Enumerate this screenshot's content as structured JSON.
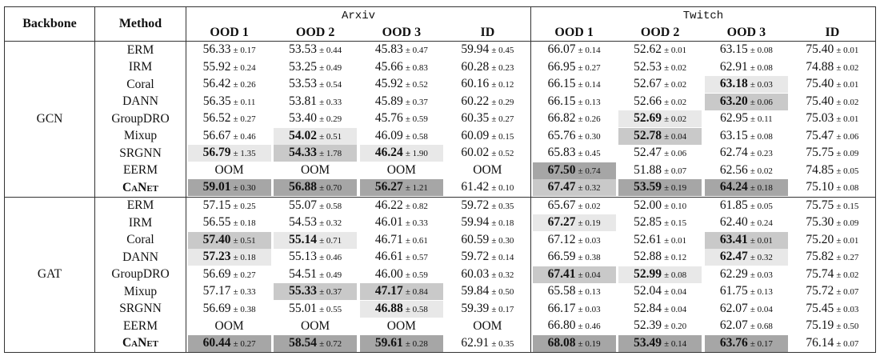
{
  "header": {
    "backbone": "Backbone",
    "method": "Method",
    "datasets": [
      {
        "name": "Arxiv",
        "columns": [
          "OOD 1",
          "OOD 2",
          "OOD 3",
          "ID"
        ]
      },
      {
        "name": "Twitch",
        "columns": [
          "OOD 1",
          "OOD 2",
          "OOD 3",
          "ID"
        ]
      }
    ]
  },
  "groups": [
    {
      "backbone": "GCN",
      "rows": [
        {
          "method": "ERM",
          "cells": [
            {
              "mean": "56.33",
              "std": "± 0.17"
            },
            {
              "mean": "53.53",
              "std": "± 0.44"
            },
            {
              "mean": "45.83",
              "std": "± 0.47"
            },
            {
              "mean": "59.94",
              "std": "± 0.45"
            },
            {
              "mean": "66.07",
              "std": "± 0.14"
            },
            {
              "mean": "52.62",
              "std": "± 0.01"
            },
            {
              "mean": "63.15",
              "std": "± 0.08"
            },
            {
              "mean": "75.40",
              "std": "± 0.01"
            }
          ]
        },
        {
          "method": "IRM",
          "cells": [
            {
              "mean": "55.92",
              "std": "± 0.24"
            },
            {
              "mean": "53.25",
              "std": "± 0.49"
            },
            {
              "mean": "45.66",
              "std": "± 0.83"
            },
            {
              "mean": "60.28",
              "std": "± 0.23"
            },
            {
              "mean": "66.95",
              "std": "± 0.27"
            },
            {
              "mean": "52.53",
              "std": "± 0.02"
            },
            {
              "mean": "62.91",
              "std": "± 0.08"
            },
            {
              "mean": "74.88",
              "std": "± 0.02"
            }
          ]
        },
        {
          "method": "Coral",
          "cells": [
            {
              "mean": "56.42",
              "std": "± 0.26"
            },
            {
              "mean": "53.53",
              "std": "± 0.54"
            },
            {
              "mean": "45.92",
              "std": "± 0.52"
            },
            {
              "mean": "60.16",
              "std": "± 0.12"
            },
            {
              "mean": "66.15",
              "std": "± 0.14"
            },
            {
              "mean": "52.67",
              "std": "± 0.02"
            },
            {
              "mean": "63.18",
              "std": "± 0.03",
              "highlight": "light"
            },
            {
              "mean": "75.40",
              "std": "± 0.01"
            }
          ]
        },
        {
          "method": "DANN",
          "cells": [
            {
              "mean": "56.35",
              "std": "± 0.11"
            },
            {
              "mean": "53.81",
              "std": "± 0.33"
            },
            {
              "mean": "45.89",
              "std": "± 0.37"
            },
            {
              "mean": "60.22",
              "std": "± 0.29"
            },
            {
              "mean": "66.15",
              "std": "± 0.13"
            },
            {
              "mean": "52.66",
              "std": "± 0.02"
            },
            {
              "mean": "63.20",
              "std": "± 0.06",
              "highlight": "medium"
            },
            {
              "mean": "75.40",
              "std": "± 0.02"
            }
          ]
        },
        {
          "method": "GroupDRO",
          "cells": [
            {
              "mean": "56.52",
              "std": "± 0.27"
            },
            {
              "mean": "53.40",
              "std": "± 0.29"
            },
            {
              "mean": "45.76",
              "std": "± 0.59"
            },
            {
              "mean": "60.35",
              "std": "± 0.27"
            },
            {
              "mean": "66.82",
              "std": "± 0.26"
            },
            {
              "mean": "52.69",
              "std": "± 0.02",
              "highlight": "light"
            },
            {
              "mean": "62.95",
              "std": "± 0.11"
            },
            {
              "mean": "75.03",
              "std": "± 0.01"
            }
          ]
        },
        {
          "method": "Mixup",
          "cells": [
            {
              "mean": "56.67",
              "std": "± 0.46"
            },
            {
              "mean": "54.02",
              "std": "± 0.51",
              "highlight": "light"
            },
            {
              "mean": "46.09",
              "std": "± 0.58"
            },
            {
              "mean": "60.09",
              "std": "± 0.15"
            },
            {
              "mean": "65.76",
              "std": "± 0.30"
            },
            {
              "mean": "52.78",
              "std": "± 0.04",
              "highlight": "medium"
            },
            {
              "mean": "63.15",
              "std": "± 0.08"
            },
            {
              "mean": "75.47",
              "std": "± 0.06"
            }
          ]
        },
        {
          "method": "SRGNN",
          "cells": [
            {
              "mean": "56.79",
              "std": "± 1.35",
              "highlight": "light"
            },
            {
              "mean": "54.33",
              "std": "± 1.78",
              "highlight": "medium"
            },
            {
              "mean": "46.24",
              "std": "± 1.90",
              "highlight": "light"
            },
            {
              "mean": "60.02",
              "std": "± 0.52"
            },
            {
              "mean": "65.83",
              "std": "± 0.45"
            },
            {
              "mean": "52.47",
              "std": "± 0.06"
            },
            {
              "mean": "62.74",
              "std": "± 0.23"
            },
            {
              "mean": "75.75",
              "std": "± 0.09"
            }
          ]
        },
        {
          "method": "EERM",
          "cells": [
            {
              "mean": "OOM"
            },
            {
              "mean": "OOM"
            },
            {
              "mean": "OOM"
            },
            {
              "mean": "OOM"
            },
            {
              "mean": "67.50",
              "std": "± 0.74",
              "highlight": "dark"
            },
            {
              "mean": "51.88",
              "std": "± 0.07"
            },
            {
              "mean": "62.56",
              "std": "± 0.02"
            },
            {
              "mean": "74.85",
              "std": "± 0.05"
            }
          ]
        },
        {
          "method": "CaNet",
          "bold": true,
          "cells": [
            {
              "mean": "59.01",
              "std": "± 0.30",
              "highlight": "dark"
            },
            {
              "mean": "56.88",
              "std": "± 0.70",
              "highlight": "dark"
            },
            {
              "mean": "56.27",
              "std": "± 1.21",
              "highlight": "dark"
            },
            {
              "mean": "61.42",
              "std": "± 0.10"
            },
            {
              "mean": "67.47",
              "std": "± 0.32",
              "highlight": "medium"
            },
            {
              "mean": "53.59",
              "std": "± 0.19",
              "highlight": "dark"
            },
            {
              "mean": "64.24",
              "std": "± 0.18",
              "highlight": "dark"
            },
            {
              "mean": "75.10",
              "std": "± 0.08"
            }
          ]
        }
      ]
    },
    {
      "backbone": "GAT",
      "rows": [
        {
          "method": "ERM",
          "cells": [
            {
              "mean": "57.15",
              "std": "± 0.25"
            },
            {
              "mean": "55.07",
              "std": "± 0.58"
            },
            {
              "mean": "46.22",
              "std": "± 0.82"
            },
            {
              "mean": "59.72",
              "std": "± 0.35"
            },
            {
              "mean": "65.67",
              "std": "± 0.02"
            },
            {
              "mean": "52.00",
              "std": "± 0.10"
            },
            {
              "mean": "61.85",
              "std": "± 0.05"
            },
            {
              "mean": "75.75",
              "std": "± 0.15"
            }
          ]
        },
        {
          "method": "IRM",
          "cells": [
            {
              "mean": "56.55",
              "std": "± 0.18"
            },
            {
              "mean": "54.53",
              "std": "± 0.32"
            },
            {
              "mean": "46.01",
              "std": "± 0.33"
            },
            {
              "mean": "59.94",
              "std": "± 0.18"
            },
            {
              "mean": "67.27",
              "std": "± 0.19",
              "highlight": "light"
            },
            {
              "mean": "52.85",
              "std": "± 0.15"
            },
            {
              "mean": "62.40",
              "std": "± 0.24"
            },
            {
              "mean": "75.30",
              "std": "± 0.09"
            }
          ]
        },
        {
          "method": "Coral",
          "cells": [
            {
              "mean": "57.40",
              "std": "± 0.51",
              "highlight": "medium"
            },
            {
              "mean": "55.14",
              "std": "± 0.71",
              "highlight": "light"
            },
            {
              "mean": "46.71",
              "std": "± 0.61"
            },
            {
              "mean": "60.59",
              "std": "± 0.30"
            },
            {
              "mean": "67.12",
              "std": "± 0.03"
            },
            {
              "mean": "52.61",
              "std": "± 0.01"
            },
            {
              "mean": "63.41",
              "std": "± 0.01",
              "highlight": "medium"
            },
            {
              "mean": "75.20",
              "std": "± 0.01"
            }
          ]
        },
        {
          "method": "DANN",
          "cells": [
            {
              "mean": "57.23",
              "std": "± 0.18",
              "highlight": "light"
            },
            {
              "mean": "55.13",
              "std": "± 0.46"
            },
            {
              "mean": "46.61",
              "std": "± 0.57"
            },
            {
              "mean": "59.72",
              "std": "± 0.14"
            },
            {
              "mean": "66.59",
              "std": "± 0.38"
            },
            {
              "mean": "52.88",
              "std": "± 0.12"
            },
            {
              "mean": "62.47",
              "std": "± 0.32",
              "highlight": "light"
            },
            {
              "mean": "75.82",
              "std": "± 0.27"
            }
          ]
        },
        {
          "method": "GroupDRO",
          "cells": [
            {
              "mean": "56.69",
              "std": "± 0.27"
            },
            {
              "mean": "54.51",
              "std": "± 0.49"
            },
            {
              "mean": "46.00",
              "std": "± 0.59"
            },
            {
              "mean": "60.03",
              "std": "± 0.32"
            },
            {
              "mean": "67.41",
              "std": "± 0.04",
              "highlight": "medium"
            },
            {
              "mean": "52.99",
              "std": "± 0.08",
              "highlight": "light"
            },
            {
              "mean": "62.29",
              "std": "± 0.03"
            },
            {
              "mean": "75.74",
              "std": "± 0.02"
            }
          ]
        },
        {
          "method": "Mixup",
          "cells": [
            {
              "mean": "57.17",
              "std": "± 0.33"
            },
            {
              "mean": "55.33",
              "std": "± 0.37",
              "highlight": "medium"
            },
            {
              "mean": "47.17",
              "std": "± 0.84",
              "highlight": "medium"
            },
            {
              "mean": "59.84",
              "std": "± 0.50"
            },
            {
              "mean": "65.58",
              "std": "± 0.13"
            },
            {
              "mean": "52.04",
              "std": "± 0.04"
            },
            {
              "mean": "61.75",
              "std": "± 0.13"
            },
            {
              "mean": "75.72",
              "std": "± 0.07"
            }
          ]
        },
        {
          "method": "SRGNN",
          "cells": [
            {
              "mean": "56.69",
              "std": "± 0.38"
            },
            {
              "mean": "55.01",
              "std": "± 0.55"
            },
            {
              "mean": "46.88",
              "std": "± 0.58",
              "highlight": "light"
            },
            {
              "mean": "59.39",
              "std": "± 0.17"
            },
            {
              "mean": "66.17",
              "std": "± 0.03"
            },
            {
              "mean": "52.84",
              "std": "± 0.04"
            },
            {
              "mean": "62.07",
              "std": "± 0.04"
            },
            {
              "mean": "75.45",
              "std": "± 0.03"
            }
          ]
        },
        {
          "method": "EERM",
          "cells": [
            {
              "mean": "OOM"
            },
            {
              "mean": "OOM"
            },
            {
              "mean": "OOM"
            },
            {
              "mean": "OOM"
            },
            {
              "mean": "66.80",
              "std": "± 0.46"
            },
            {
              "mean": "52.39",
              "std": "± 0.20"
            },
            {
              "mean": "62.07",
              "std": "± 0.68"
            },
            {
              "mean": "75.19",
              "std": "± 0.50"
            }
          ]
        },
        {
          "method": "CaNet",
          "bold": true,
          "cells": [
            {
              "mean": "60.44",
              "std": "± 0.27",
              "highlight": "dark"
            },
            {
              "mean": "58.54",
              "std": "± 0.72",
              "highlight": "dark"
            },
            {
              "mean": "59.61",
              "std": "± 0.28",
              "highlight": "dark"
            },
            {
              "mean": "62.91",
              "std": "± 0.35"
            },
            {
              "mean": "68.08",
              "std": "± 0.19",
              "highlight": "dark"
            },
            {
              "mean": "53.49",
              "std": "± 0.14",
              "highlight": "dark"
            },
            {
              "mean": "63.76",
              "std": "± 0.17",
              "highlight": "dark"
            },
            {
              "mean": "76.14",
              "std": "± 0.07"
            }
          ]
        }
      ]
    }
  ]
}
